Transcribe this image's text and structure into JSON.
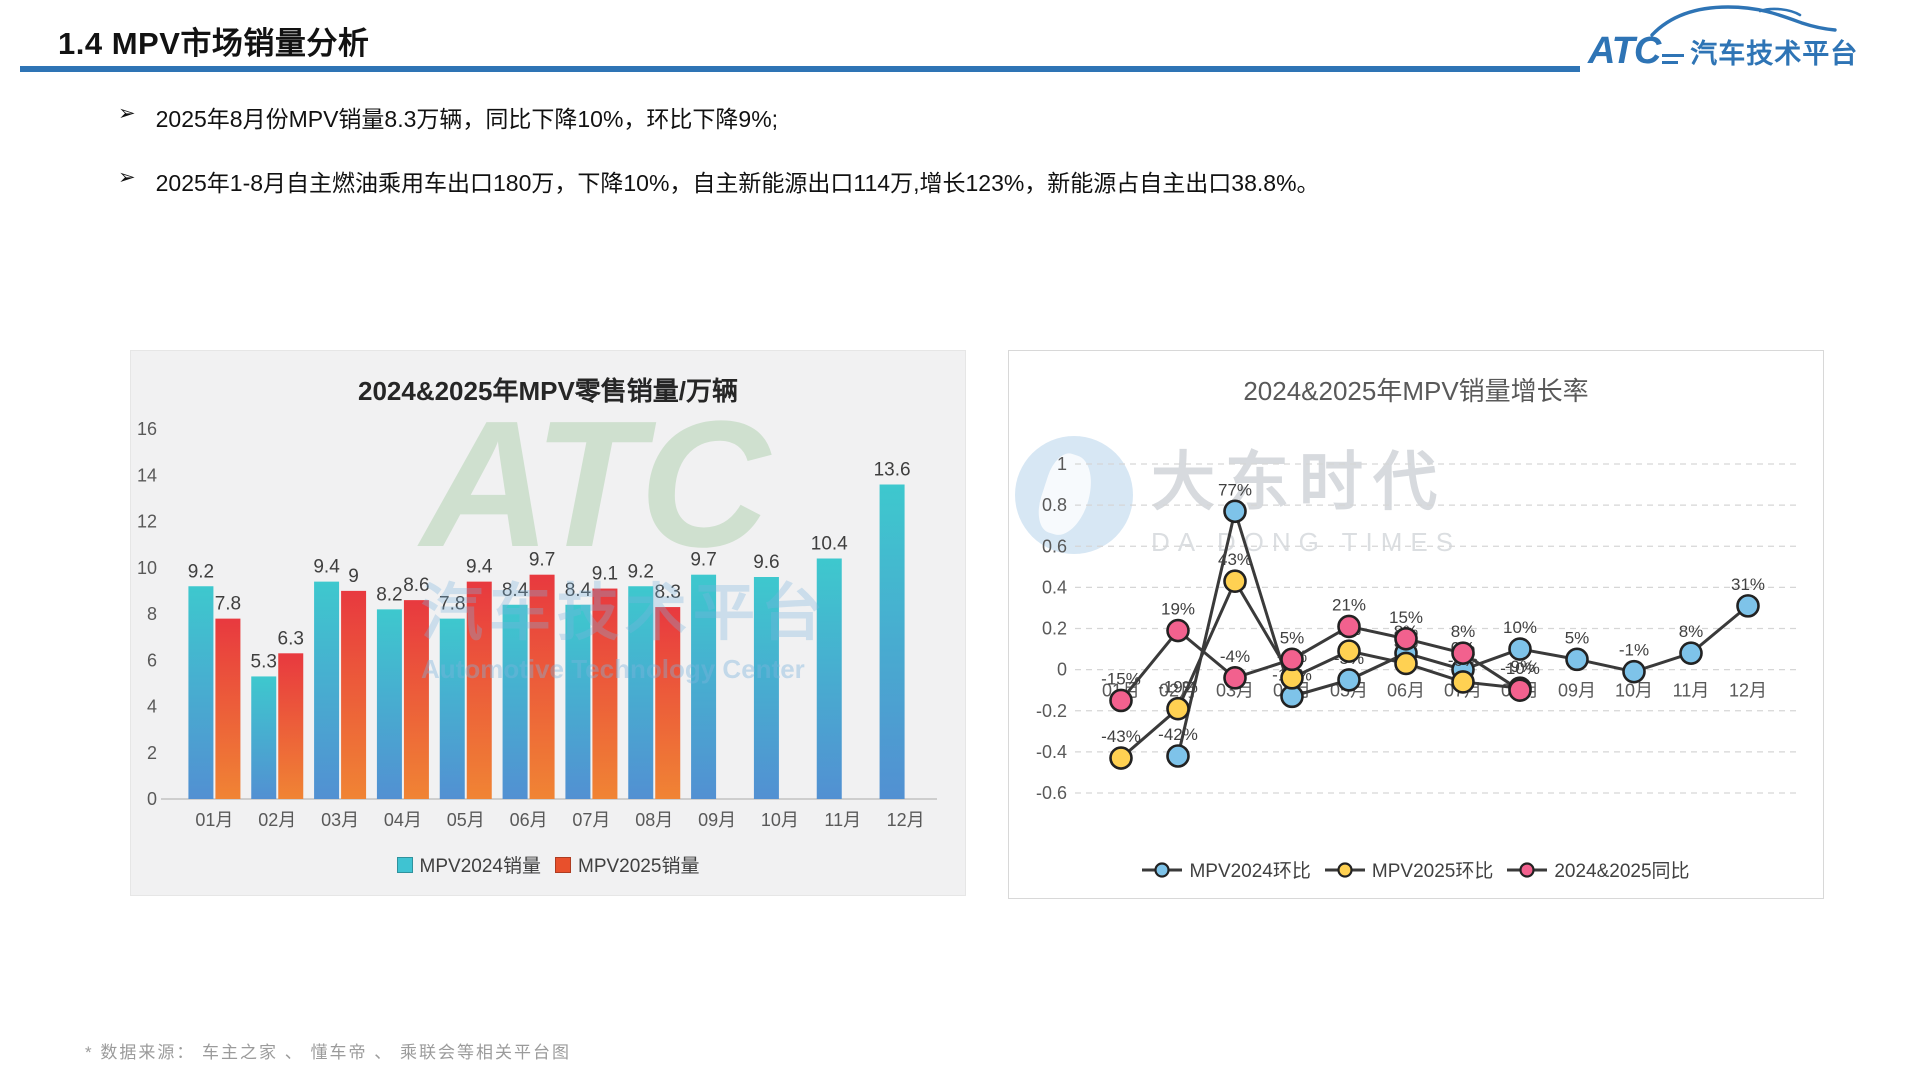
{
  "header": {
    "title": "1.4 MPV市场销量分析",
    "underline_color": "#2e74b5",
    "logo": {
      "brand": "ATC",
      "brand_text": "汽车技术平台",
      "color": "#2e74b5"
    }
  },
  "bullets": [
    {
      "marker": "➢",
      "text": "2025年8月份MPV销量8.3万辆，同比下降10%，环比下降9%;"
    },
    {
      "marker": "➢",
      "text": "2025年1-8月自主燃油乘用车出口180万，下降10%，自主新能源出口114万,增长123%，新能源占自主出口38.8%。"
    }
  ],
  "chart_data": [
    {
      "type": "bar",
      "title": "2024&2025年MPV零售销量/万辆",
      "categories": [
        "01月",
        "02月",
        "03月",
        "04月",
        "05月",
        "06月",
        "07月",
        "08月",
        "09月",
        "10月",
        "11月",
        "12月"
      ],
      "series": [
        {
          "name": "MPV2024销量",
          "values": [
            9.2,
            5.3,
            9.4,
            8.2,
            7.8,
            8.4,
            8.4,
            9.2,
            9.7,
            9.6,
            10.4,
            13.6
          ],
          "labels": [
            "9.2",
            "5.3",
            "9.4",
            "8.2",
            "7.8",
            "8.4",
            "8.4",
            "9.2",
            "9.7",
            "9.6",
            "10.4",
            "13.6"
          ],
          "color_top": "#3ec8ce",
          "color_bottom": "#5290d2",
          "legend_color": "#3fc3d2"
        },
        {
          "name": "MPV2025销量",
          "values": [
            7.8,
            6.3,
            9,
            8.6,
            9.4,
            9.7,
            9.1,
            8.3,
            null,
            null,
            null,
            null
          ],
          "labels": [
            "7.8",
            "6.3",
            "9",
            "8.6",
            "9.4",
            "9.7",
            "9.1",
            "8.3",
            "",
            "",
            "",
            ""
          ],
          "color_top": "#e8393f",
          "color_bottom": "#f08434",
          "legend_color": "#e8502c"
        }
      ],
      "ylim": [
        0,
        16
      ],
      "yticks": [
        16,
        14,
        12,
        10,
        8,
        6,
        4,
        2,
        0
      ],
      "grid": false,
      "legend_position": "bottom",
      "watermark": {
        "line1": "ATC",
        "line2": "汽车技术平台",
        "line3": "Automotive Technology Center"
      }
    },
    {
      "type": "line",
      "title": "2024&2025年MPV销量增长率",
      "categories": [
        "01月",
        "02月",
        "03月",
        "04月",
        "05月",
        "06月",
        "07月",
        "08月",
        "09月",
        "10月",
        "11月",
        "12月"
      ],
      "series": [
        {
          "name": "MPV2024环比",
          "marker_color": "#7ec3e9",
          "values": [
            null,
            -0.42,
            0.77,
            -0.13,
            -0.05,
            0.08,
            0.0,
            0.1,
            0.05,
            -0.01,
            0.08,
            0.31
          ],
          "labels": [
            "",
            "-42%",
            "77%",
            "-13%",
            "-5%",
            "8%",
            "0%",
            "10%",
            "5%",
            "-1%",
            "8%",
            "31%"
          ]
        },
        {
          "name": "MPV2025环比",
          "marker_color": "#ffd152",
          "values": [
            -0.43,
            -0.19,
            0.43,
            -0.04,
            0.09,
            0.03,
            -0.06,
            -0.09,
            null,
            null,
            null,
            null
          ],
          "labels": [
            "-43%",
            "-19%",
            "43%",
            "-4%",
            "9%",
            "3%",
            "-6%",
            "-9%",
            "",
            "",
            "",
            ""
          ]
        },
        {
          "name": "2024&2025同比",
          "marker_color": "#f2618e",
          "values": [
            -0.15,
            0.19,
            -0.04,
            0.05,
            0.21,
            0.15,
            0.08,
            -0.1,
            null,
            null,
            null,
            null
          ],
          "labels": [
            "-15%",
            "19%",
            "-4%",
            "5%",
            "21%",
            "15%",
            "8%",
            "-10%",
            "",
            "",
            "",
            ""
          ]
        }
      ],
      "ylim": [
        -0.6,
        1
      ],
      "yticks": [
        1,
        0.8,
        0.6,
        0.4,
        0.2,
        0,
        -0.2,
        -0.4,
        -0.6
      ],
      "grid": true,
      "line_color": "#3a3a3a",
      "legend_position": "bottom",
      "watermark": {
        "line1": "大东时代",
        "line2": "DA DONG TIMES"
      }
    }
  ],
  "footer": {
    "text": "* 数据来源： 车主之家 、 懂车帝 、 乘联会等相关平台图"
  }
}
